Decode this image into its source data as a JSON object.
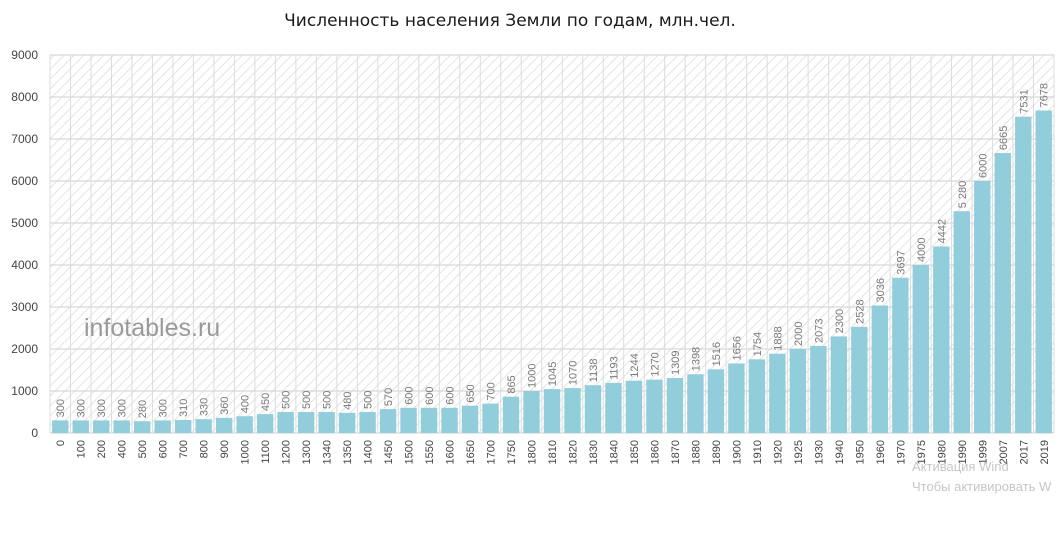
{
  "chart_data": {
    "type": "bar",
    "title": "Численность населения Земли по годам, млн.чел.",
    "xlabel": "",
    "ylabel": "",
    "ylim": [
      0,
      9000
    ],
    "yticks": [
      "0",
      "1000",
      "2000",
      "3000",
      "4000",
      "5000",
      "6000",
      "7000",
      "8000",
      "9000"
    ],
    "categories": [
      "0",
      "100",
      "200",
      "400",
      "500",
      "600",
      "700",
      "800",
      "900",
      "1000",
      "1100",
      "1200",
      "1300",
      "1340",
      "1350",
      "1400",
      "1450",
      "1500",
      "1550",
      "1600",
      "1650",
      "1700",
      "1750",
      "1800",
      "1810",
      "1820",
      "1830",
      "1840",
      "1850",
      "1860",
      "1870",
      "1880",
      "1890",
      "1900",
      "1910",
      "1920",
      "1925",
      "1930",
      "1940",
      "1950",
      "1960",
      "1970",
      "1975",
      "1980",
      "1990",
      "1999",
      "2007",
      "2017",
      "2019"
    ],
    "values": [
      300,
      300,
      300,
      300,
      280,
      300,
      310,
      330,
      360,
      400,
      450,
      500,
      500,
      500,
      480,
      500,
      570,
      600,
      600,
      600,
      650,
      700,
      865,
      1000,
      1045,
      1070,
      1138,
      1193,
      1244,
      1270,
      1309,
      1398,
      1516,
      1656,
      1754,
      1888,
      2000,
      2073,
      2300,
      2528,
      3036,
      3697,
      4000,
      4442,
      5280,
      6000,
      6665,
      7531,
      7678
    ],
    "data_labels": [
      "300",
      "300",
      "300",
      "300",
      "280",
      "300",
      "310",
      "330",
      "360",
      "400",
      "450",
      "500",
      "500",
      "500",
      "480",
      "500",
      "570",
      "600",
      "600",
      "600",
      "650",
      "700",
      "865",
      "1000",
      "1045",
      "1070",
      "1138",
      "1193",
      "1244",
      "1270",
      "1309",
      "1398",
      "1516",
      "1656",
      "1754",
      "1888",
      "2000",
      "2073",
      "2300",
      "2528",
      "3036",
      "3697",
      "4000",
      "4442",
      "5 280",
      "6000",
      "6665",
      "7531",
      "7678"
    ],
    "bar_color": "#92cddc",
    "grid": true,
    "legend": "none"
  },
  "watermark": "infotables.ru",
  "os_overlay": {
    "line1": "Активация Wind",
    "line2": "Чтобы активировать W"
  }
}
